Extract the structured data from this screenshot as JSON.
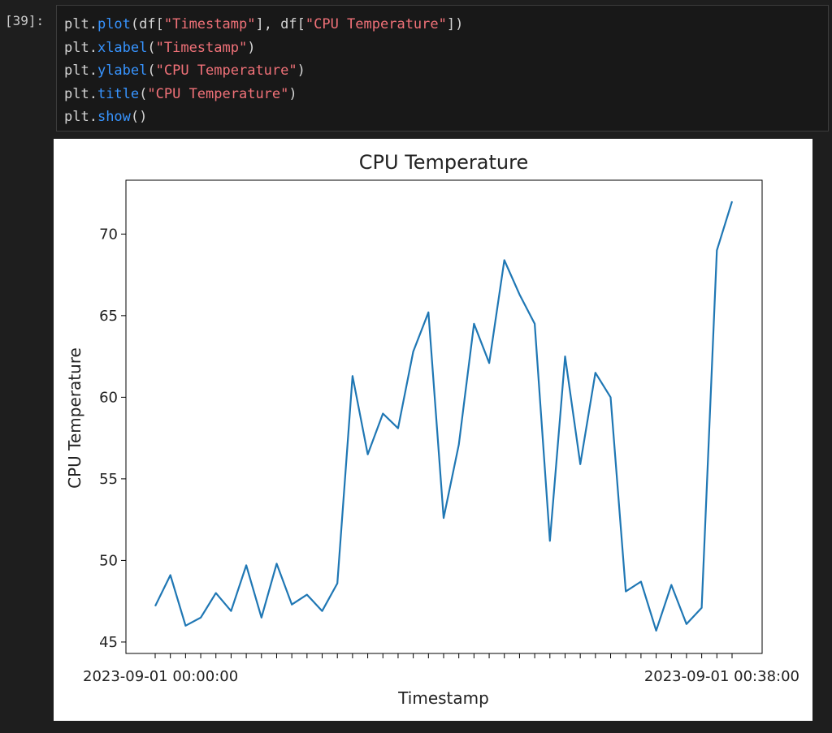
{
  "cell": {
    "prompt": "[39]:",
    "lines": [
      [
        {
          "t": "plt.",
          "c": ""
        },
        {
          "t": "plot",
          "c": "fn"
        },
        {
          "t": "(df[",
          "c": ""
        },
        {
          "t": "\"Timestamp\"",
          "c": "str"
        },
        {
          "t": "], df[",
          "c": ""
        },
        {
          "t": "\"CPU Temperature\"",
          "c": "str"
        },
        {
          "t": "])",
          "c": ""
        }
      ],
      [
        {
          "t": "plt.",
          "c": ""
        },
        {
          "t": "xlabel",
          "c": "fn"
        },
        {
          "t": "(",
          "c": ""
        },
        {
          "t": "\"Timestamp\"",
          "c": "str"
        },
        {
          "t": ")",
          "c": ""
        }
      ],
      [
        {
          "t": "plt.",
          "c": ""
        },
        {
          "t": "ylabel",
          "c": "fn"
        },
        {
          "t": "(",
          "c": ""
        },
        {
          "t": "\"CPU Temperature\"",
          "c": "str"
        },
        {
          "t": ")",
          "c": ""
        }
      ],
      [
        {
          "t": "plt.",
          "c": ""
        },
        {
          "t": "title",
          "c": "fn"
        },
        {
          "t": "(",
          "c": ""
        },
        {
          "t": "\"CPU Temperature\"",
          "c": "str"
        },
        {
          "t": ")",
          "c": ""
        }
      ],
      [
        {
          "t": "plt.",
          "c": ""
        },
        {
          "t": "show",
          "c": "fn"
        },
        {
          "t": "()",
          "c": ""
        }
      ]
    ]
  },
  "chart_data": {
    "type": "line",
    "title": "CPU Temperature",
    "xlabel": "Timestamp",
    "ylabel": "CPU Temperature",
    "yticks": [
      45,
      50,
      55,
      60,
      65,
      70
    ],
    "ylim": [
      44.3,
      73.3
    ],
    "xtick_text_left": "2023-09-01 00:00:00",
    "xtick_text_right": "2023-09-01 00:38:00",
    "series": [
      {
        "color": "#1f77b4",
        "values": [
          47.2,
          49.1,
          46.0,
          46.5,
          48.0,
          46.9,
          49.7,
          46.5,
          49.8,
          47.3,
          47.9,
          46.9,
          48.6,
          61.3,
          56.5,
          59.0,
          58.1,
          62.8,
          65.2,
          52.6,
          57.1,
          64.5,
          62.1,
          68.4,
          66.3,
          64.5,
          51.2,
          62.5,
          55.9,
          61.5,
          60.0,
          48.1,
          48.7,
          45.7,
          48.5,
          46.1,
          47.1,
          69.0,
          72.0
        ]
      }
    ]
  }
}
